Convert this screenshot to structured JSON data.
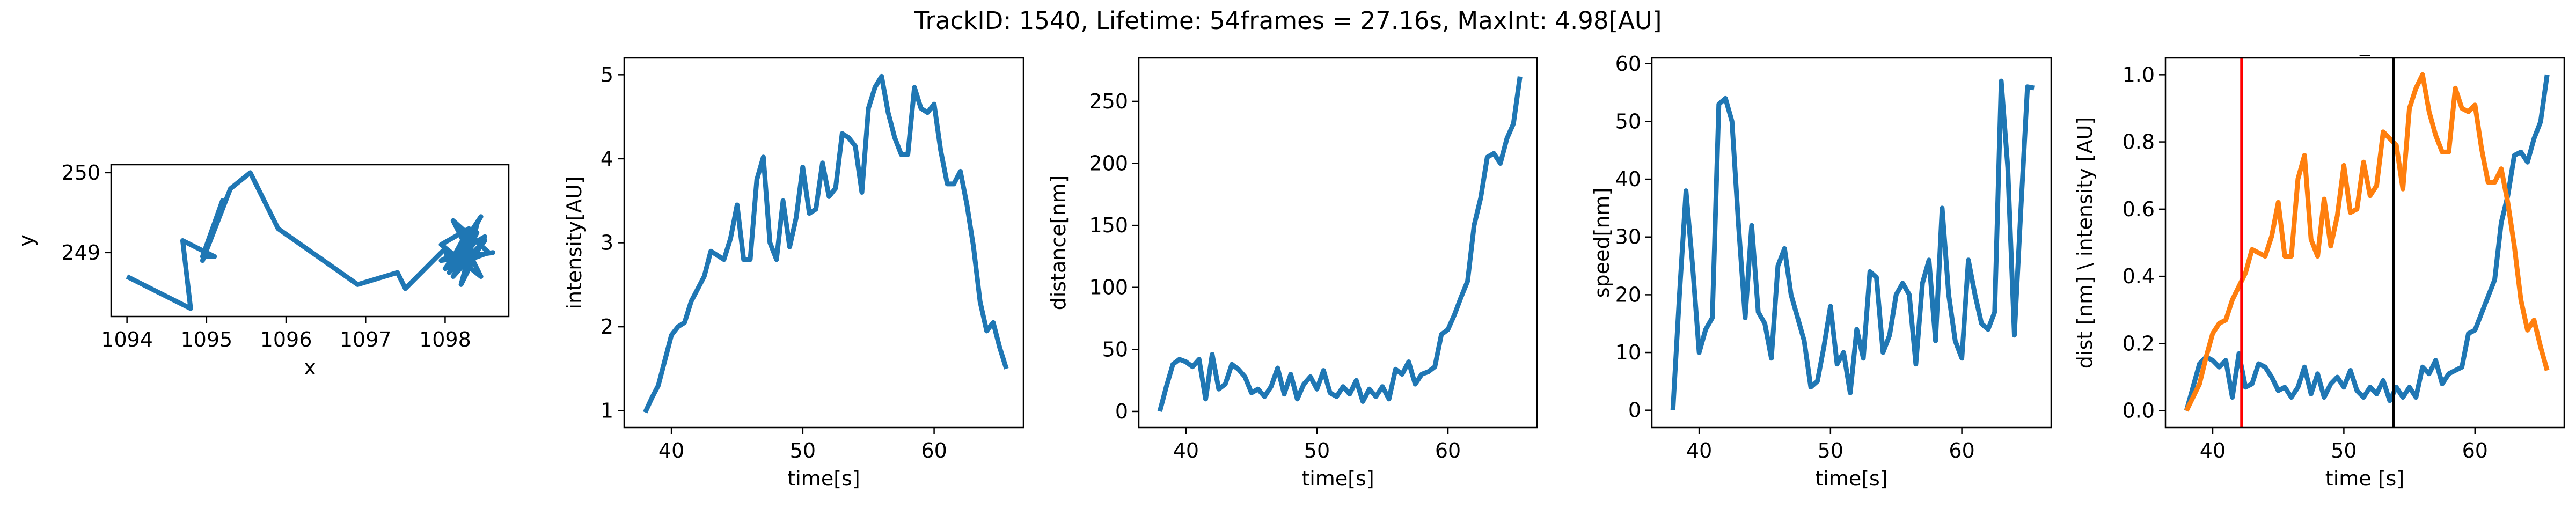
{
  "title": "TrackID: 1540, Lifetime: 54frames = 27.16s, MaxInt: 4.98[AU]",
  "colors": {
    "blue": "#1f77b4",
    "orange": "#ff7f0e",
    "red": "#ff0000",
    "black": "#000000"
  },
  "chart_data": [
    {
      "type": "line",
      "title": "",
      "xlabel": "x",
      "ylabel": "y",
      "xlim": [
        1093.8,
        1098.8
      ],
      "ylim": [
        248.2,
        250.1
      ],
      "xticks": [
        1094,
        1095,
        1096,
        1097,
        1098
      ],
      "yticks": [
        249,
        250
      ],
      "series": [
        {
          "color": "#1f77b4",
          "x": [
            1094.0,
            1094.8,
            1094.7,
            1095.1,
            1094.95,
            1095.2,
            1094.95,
            1095.3,
            1095.55,
            1095.9,
            1096.9,
            1097.4,
            1097.5,
            1097.85,
            1098.0,
            1098.05,
            1098.3,
            1097.95,
            1098.45,
            1098.1,
            1098.55,
            1098.0,
            1098.4,
            1098.2,
            1098.5,
            1098.15,
            1098.45,
            1098.05,
            1098.35,
            1097.95,
            1098.6,
            1098.25,
            1098.4,
            1098.1,
            1098.5,
            1098.2,
            1098.3
          ],
          "y": [
            248.7,
            248.3,
            249.15,
            248.95,
            248.95,
            249.65,
            248.9,
            249.8,
            250.0,
            249.3,
            248.6,
            248.75,
            248.55,
            248.9,
            249.05,
            248.85,
            249.3,
            249.1,
            248.7,
            249.4,
            249.0,
            248.8,
            249.35,
            248.6,
            249.2,
            249.0,
            249.45,
            248.75,
            249.1,
            248.9,
            249.0,
            248.95,
            249.25,
            248.7,
            249.15,
            248.85,
            249.0
          ]
        }
      ]
    },
    {
      "type": "line",
      "title": "",
      "xlabel": "time[s]",
      "ylabel": "intensity[AU]",
      "xlim": [
        36.4,
        66.8
      ],
      "ylim": [
        0.8,
        5.2
      ],
      "xticks": [
        40,
        50,
        60
      ],
      "yticks": [
        1,
        2,
        3,
        4,
        5
      ],
      "series": [
        {
          "color": "#1f77b4",
          "x": [
            38.0,
            38.5,
            39.0,
            39.5,
            40.0,
            40.5,
            41.0,
            41.5,
            42.0,
            42.5,
            43.0,
            43.5,
            44.0,
            44.5,
            45.0,
            45.5,
            46.0,
            46.5,
            47.0,
            47.5,
            48.0,
            48.5,
            49.0,
            49.5,
            50.0,
            50.5,
            51.0,
            51.5,
            52.0,
            52.5,
            53.0,
            53.5,
            54.0,
            54.5,
            55.0,
            55.5,
            56.0,
            56.5,
            57.0,
            57.5,
            58.0,
            58.5,
            59.0,
            59.5,
            60.0,
            60.5,
            61.0,
            61.5,
            62.0,
            62.5,
            63.0,
            63.5,
            64.0,
            64.5,
            65.0,
            65.5
          ],
          "y": [
            0.98,
            1.15,
            1.3,
            1.6,
            1.9,
            2.0,
            2.05,
            2.3,
            2.45,
            2.6,
            2.9,
            2.85,
            2.8,
            3.05,
            3.45,
            2.8,
            2.8,
            3.75,
            4.02,
            3.0,
            2.8,
            3.5,
            2.95,
            3.3,
            3.9,
            3.35,
            3.4,
            3.95,
            3.55,
            3.65,
            4.3,
            4.25,
            4.15,
            3.6,
            4.6,
            4.85,
            4.98,
            4.55,
            4.25,
            4.05,
            4.05,
            4.85,
            4.6,
            4.55,
            4.65,
            4.1,
            3.7,
            3.7,
            3.85,
            3.45,
            2.95,
            2.3,
            1.95,
            2.05,
            1.75,
            1.5
          ]
        }
      ]
    },
    {
      "type": "line",
      "title": "",
      "xlabel": "time[s]",
      "ylabel": "distance[nm]",
      "xlim": [
        36.4,
        66.8
      ],
      "ylim": [
        -13,
        285
      ],
      "xticks": [
        40,
        50,
        60
      ],
      "yticks": [
        0,
        50,
        100,
        150,
        200,
        250
      ],
      "series": [
        {
          "color": "#1f77b4",
          "x": [
            38.0,
            38.5,
            39.0,
            39.5,
            40.0,
            40.5,
            41.0,
            41.5,
            42.0,
            42.5,
            43.0,
            43.5,
            44.0,
            44.5,
            45.0,
            45.5,
            46.0,
            46.5,
            47.0,
            47.5,
            48.0,
            48.5,
            49.0,
            49.5,
            50.0,
            50.5,
            51.0,
            51.5,
            52.0,
            52.5,
            53.0,
            53.5,
            54.0,
            54.5,
            55.0,
            55.5,
            56.0,
            56.5,
            57.0,
            57.5,
            58.0,
            58.5,
            59.0,
            59.5,
            60.0,
            60.5,
            61.0,
            61.5,
            62.0,
            62.5,
            63.0,
            63.5,
            64.0,
            64.5,
            65.0,
            65.5
          ],
          "y": [
            0,
            20,
            38,
            42,
            40,
            36,
            42,
            10,
            46,
            18,
            22,
            38,
            34,
            28,
            15,
            18,
            12,
            20,
            35,
            14,
            30,
            10,
            22,
            28,
            18,
            33,
            15,
            12,
            20,
            14,
            25,
            8,
            18,
            12,
            20,
            10,
            34,
            30,
            40,
            22,
            30,
            32,
            36,
            62,
            66,
            78,
            92,
            105,
            150,
            172,
            205,
            208,
            200,
            220,
            232,
            270
          ]
        }
      ]
    },
    {
      "type": "line",
      "title": "",
      "xlabel": "time[s]",
      "ylabel": "speed[nm]",
      "xlim": [
        36.4,
        66.8
      ],
      "ylim": [
        -3,
        61
      ],
      "xticks": [
        40,
        50,
        60
      ],
      "yticks": [
        0,
        10,
        20,
        30,
        40,
        50,
        60
      ],
      "series": [
        {
          "color": "#1f77b4",
          "x": [
            38.0,
            38.5,
            39.0,
            39.5,
            40.0,
            40.5,
            41.0,
            41.5,
            42.0,
            42.5,
            43.0,
            43.5,
            44.0,
            44.5,
            45.0,
            45.5,
            46.0,
            46.5,
            47.0,
            47.5,
            48.0,
            48.5,
            49.0,
            49.5,
            50.0,
            50.5,
            51.0,
            51.5,
            52.0,
            52.5,
            53.0,
            53.5,
            54.0,
            54.5,
            55.0,
            55.5,
            56.0,
            56.5,
            57.0,
            57.5,
            58.0,
            58.5,
            59.0,
            59.5,
            60.0,
            60.5,
            61.0,
            61.5,
            62.0,
            62.5,
            63.0,
            63.5,
            64.0,
            64.5,
            65.0,
            65.5
          ],
          "y": [
            0,
            20,
            38,
            25,
            10,
            14,
            16,
            53,
            54,
            50,
            32,
            16,
            32,
            17,
            15,
            9,
            25,
            28,
            20,
            16,
            12,
            4,
            5,
            11,
            18,
            8,
            10,
            3,
            14,
            9,
            24,
            23,
            10,
            13,
            20,
            22,
            20,
            8,
            22,
            26,
            12,
            35,
            20,
            12,
            9,
            26,
            20,
            15,
            14,
            17,
            57,
            42,
            13,
            35,
            56,
            55.8
          ]
        }
      ]
    },
    {
      "type": "line",
      "title": "_",
      "xlabel": "time [s]",
      "ylabel": "dist [nm] \\ intensity [AU]",
      "xlim": [
        36.4,
        66.8
      ],
      "ylim": [
        -0.05,
        1.05
      ],
      "xticks": [
        40,
        50,
        60
      ],
      "yticks": [
        0.0,
        0.2,
        0.4,
        0.6,
        0.8,
        1.0
      ],
      "vlines": [
        {
          "x": 42.2,
          "color": "#ff0000"
        },
        {
          "x": 53.8,
          "color": "#000000"
        }
      ],
      "series": [
        {
          "color": "#1f77b4",
          "x": [
            38.0,
            38.5,
            39.0,
            39.5,
            40.0,
            40.5,
            41.0,
            41.5,
            42.0,
            42.5,
            43.0,
            43.5,
            44.0,
            44.5,
            45.0,
            45.5,
            46.0,
            46.5,
            47.0,
            47.5,
            48.0,
            48.5,
            49.0,
            49.5,
            50.0,
            50.5,
            51.0,
            51.5,
            52.0,
            52.5,
            53.0,
            53.5,
            54.0,
            54.5,
            55.0,
            55.5,
            56.0,
            56.5,
            57.0,
            57.5,
            58.0,
            58.5,
            59.0,
            59.5,
            60.0,
            60.5,
            61.0,
            61.5,
            62.0,
            62.5,
            63.0,
            63.5,
            64.0,
            64.5,
            65.0,
            65.5
          ],
          "y": [
            0.0,
            0.07,
            0.14,
            0.16,
            0.15,
            0.13,
            0.15,
            0.04,
            0.17,
            0.07,
            0.08,
            0.14,
            0.13,
            0.1,
            0.06,
            0.07,
            0.04,
            0.07,
            0.13,
            0.05,
            0.11,
            0.04,
            0.08,
            0.1,
            0.07,
            0.12,
            0.06,
            0.04,
            0.07,
            0.05,
            0.09,
            0.03,
            0.07,
            0.04,
            0.07,
            0.04,
            0.13,
            0.11,
            0.15,
            0.08,
            0.11,
            0.12,
            0.13,
            0.23,
            0.24,
            0.29,
            0.34,
            0.39,
            0.56,
            0.64,
            0.76,
            0.77,
            0.74,
            0.81,
            0.86,
            1.0
          ]
        },
        {
          "color": "#ff7f0e",
          "x": [
            38.0,
            38.5,
            39.0,
            39.5,
            40.0,
            40.5,
            41.0,
            41.5,
            42.0,
            42.5,
            43.0,
            43.5,
            44.0,
            44.5,
            45.0,
            45.5,
            46.0,
            46.5,
            47.0,
            47.5,
            48.0,
            48.5,
            49.0,
            49.5,
            50.0,
            50.5,
            51.0,
            51.5,
            52.0,
            52.5,
            53.0,
            53.5,
            54.0,
            54.5,
            55.0,
            55.5,
            56.0,
            56.5,
            57.0,
            57.5,
            58.0,
            58.5,
            59.0,
            59.5,
            60.0,
            60.5,
            61.0,
            61.5,
            62.0,
            62.5,
            63.0,
            63.5,
            64.0,
            64.5,
            65.0,
            65.5
          ],
          "y": [
            0.0,
            0.04,
            0.08,
            0.16,
            0.23,
            0.26,
            0.27,
            0.33,
            0.37,
            0.41,
            0.48,
            0.47,
            0.46,
            0.52,
            0.62,
            0.46,
            0.46,
            0.69,
            0.76,
            0.51,
            0.46,
            0.63,
            0.49,
            0.58,
            0.73,
            0.59,
            0.6,
            0.74,
            0.64,
            0.67,
            0.83,
            0.81,
            0.79,
            0.66,
            0.9,
            0.96,
            1.0,
            0.89,
            0.82,
            0.77,
            0.77,
            0.96,
            0.9,
            0.89,
            0.91,
            0.78,
            0.68,
            0.68,
            0.72,
            0.62,
            0.49,
            0.33,
            0.24,
            0.27,
            0.19,
            0.12
          ]
        }
      ]
    }
  ]
}
